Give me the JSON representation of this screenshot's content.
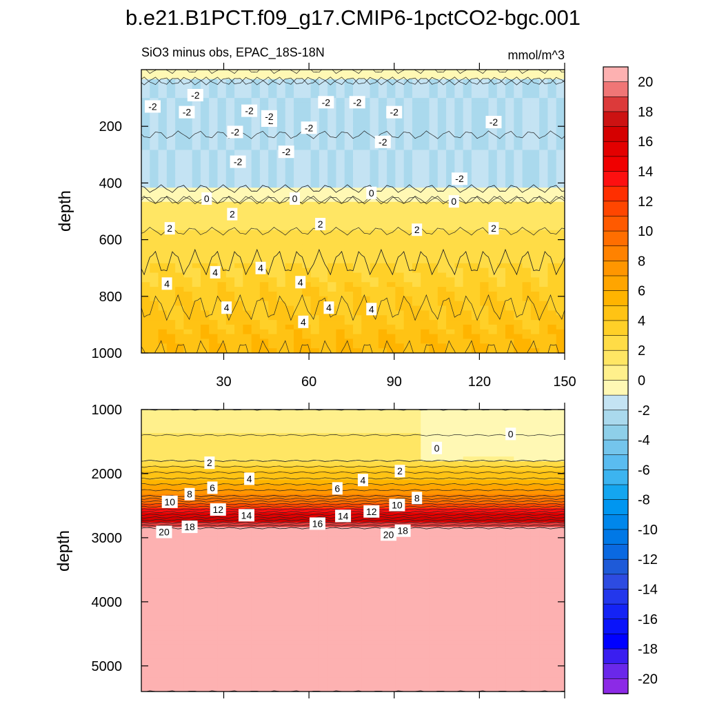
{
  "figure_title": "b.e21.B1PCT.f09_g17.CMIP6-1pctCO2-bgc.001",
  "chart_data": {
    "type": "contour",
    "title": "b.e21.B1PCT.f09_g17.CMIP6-1pctCO2-bgc.001",
    "subtitle_left": "SiO3 minus obs, EPAC_18S-18N",
    "subtitle_right": "mmol/m^3",
    "colorbar": {
      "levels": [
        -21,
        -20,
        -19,
        -18,
        -17,
        -16,
        -15,
        -14,
        -13,
        -12,
        -11,
        -10,
        -9,
        -8,
        -7,
        -6,
        -5,
        -4,
        -3,
        -2,
        -1,
        0,
        1,
        2,
        3,
        4,
        5,
        6,
        7,
        8,
        9,
        10,
        11,
        12,
        13,
        14,
        15,
        16,
        17,
        18,
        19,
        20,
        21
      ],
      "tick_labels": [
        "20",
        "18",
        "16",
        "14",
        "12",
        "10",
        "8",
        "6",
        "4",
        "2",
        "0",
        "-2",
        "-4",
        "-6",
        "-8",
        "-10",
        "-12",
        "-14",
        "-16",
        "-18",
        "-20"
      ],
      "colors_top_to_bottom": [
        "#fdb1b1",
        "#f07676",
        "#dc3a3a",
        "#cc1212",
        "#d50000",
        "#e30000",
        "#f00000",
        "#fd1010",
        "#ff2f00",
        "#ff4600",
        "#ff5a00",
        "#ff6e00",
        "#ff8200",
        "#ff9600",
        "#ffa500",
        "#ffb400",
        "#ffc314",
        "#ffd028",
        "#ffdc46",
        "#ffe664",
        "#fff08c",
        "#fff8b4",
        "#c4e3f3",
        "#aad9ed",
        "#8ecfe9",
        "#74c5ec",
        "#5abcf0",
        "#3cb4f0",
        "#14a6f0",
        "#0096f0",
        "#0087eb",
        "#0078e6",
        "#0a69e1",
        "#1e5ad8",
        "#2d4be1",
        "#2337ec",
        "#1423f5",
        "#0a14fa",
        "#0000ff",
        "#3a1ef0",
        "#6a28ea",
        "#8c2ae6"
      ]
    },
    "panels": [
      {
        "name": "upper-0-1000m",
        "x_axis": {
          "range": [
            1,
            150
          ],
          "ticks": [
            30,
            60,
            90,
            120,
            150
          ]
        },
        "y_axis": {
          "label": "depth",
          "range": [
            0,
            1000
          ],
          "ticks": [
            200,
            400,
            600,
            800,
            1000
          ],
          "inverted": true
        },
        "bands": [
          {
            "depth": [
              0,
              40
            ],
            "value_range": [
              -1,
              0
            ]
          },
          {
            "depth": [
              40,
              420
            ],
            "value_range": [
              -3,
              -1
            ]
          },
          {
            "depth": [
              420,
              460
            ],
            "value_range": [
              -1,
              0
            ]
          },
          {
            "depth": [
              460,
              680
            ],
            "value_range": [
              1,
              3
            ]
          },
          {
            "depth": [
              680,
              1000
            ],
            "value_range": [
              3,
              5
            ]
          }
        ],
        "contour_labels": [
          {
            "value": "-2",
            "x": 5,
            "depth": 130
          },
          {
            "value": "-2",
            "x": 20,
            "depth": 90
          },
          {
            "value": "-2",
            "x": 39,
            "depth": 145
          },
          {
            "value": "-2",
            "x": 34,
            "depth": 220
          },
          {
            "value": "-2",
            "x": 46,
            "depth": 180
          },
          {
            "value": "-2",
            "x": 66,
            "depth": 115
          },
          {
            "value": "-2",
            "x": 90,
            "depth": 150
          },
          {
            "value": "-2",
            "x": 46,
            "depth": 165
          },
          {
            "value": "-2",
            "x": 60,
            "depth": 205
          },
          {
            "value": "-2",
            "x": 77,
            "depth": 115
          },
          {
            "value": "-2",
            "x": 52,
            "depth": 290
          },
          {
            "value": "-2",
            "x": 86,
            "depth": 255
          },
          {
            "value": "-2",
            "x": 35,
            "depth": 325
          },
          {
            "value": "-2",
            "x": 125,
            "depth": 185
          },
          {
            "value": "-2",
            "x": 113,
            "depth": 385
          },
          {
            "value": "-2",
            "x": 17,
            "depth": 150
          },
          {
            "value": "0",
            "x": 24,
            "depth": 455
          },
          {
            "value": "0",
            "x": 55,
            "depth": 455
          },
          {
            "value": "0",
            "x": 82,
            "depth": 435
          },
          {
            "value": "0",
            "x": 111,
            "depth": 465
          },
          {
            "value": "2",
            "x": 33,
            "depth": 510
          },
          {
            "value": "2",
            "x": 11,
            "depth": 560
          },
          {
            "value": "2",
            "x": 64,
            "depth": 545
          },
          {
            "value": "2",
            "x": 98,
            "depth": 565
          },
          {
            "value": "2",
            "x": 125,
            "depth": 560
          },
          {
            "value": "4",
            "x": 10,
            "depth": 755
          },
          {
            "value": "4",
            "x": 27,
            "depth": 715
          },
          {
            "value": "4",
            "x": 43,
            "depth": 700
          },
          {
            "value": "4",
            "x": 57,
            "depth": 750
          },
          {
            "value": "4",
            "x": 31,
            "depth": 840
          },
          {
            "value": "4",
            "x": 67,
            "depth": 840
          },
          {
            "value": "4",
            "x": 82,
            "depth": 845
          },
          {
            "value": "4",
            "x": 58,
            "depth": 890
          }
        ]
      },
      {
        "name": "lower-1000-5000m",
        "x_axis": {
          "range": [
            1,
            150
          ],
          "ticks": [
            30,
            60,
            90,
            120,
            150
          ]
        },
        "y_axis": {
          "label": "depth",
          "range": [
            1000,
            5400
          ],
          "ticks": [
            1000,
            2000,
            3000,
            4000,
            5000
          ],
          "inverted": true
        },
        "bands": [
          {
            "depth": [
              1000,
              1800
            ],
            "value_range": [
              0,
              2
            ]
          },
          {
            "depth": [
              1800,
              2350
            ],
            "value_range": [
              2,
              8
            ]
          },
          {
            "depth": [
              2350,
              2850
            ],
            "value_range": [
              8,
              20
            ]
          },
          {
            "depth": [
              2850,
              5400
            ],
            "value_range": [
              20,
              21
            ]
          }
        ],
        "contour_labels": [
          {
            "value": "0",
            "x": 105,
            "depth": 1600
          },
          {
            "value": "0",
            "x": 131,
            "depth": 1380
          },
          {
            "value": "2",
            "x": 25,
            "depth": 1830
          },
          {
            "value": "2",
            "x": 92,
            "depth": 1960
          },
          {
            "value": "4",
            "x": 39,
            "depth": 2080
          },
          {
            "value": "4",
            "x": 79,
            "depth": 2100
          },
          {
            "value": "6",
            "x": 26,
            "depth": 2220
          },
          {
            "value": "6",
            "x": 70,
            "depth": 2230
          },
          {
            "value": "8",
            "x": 18,
            "depth": 2320
          },
          {
            "value": "8",
            "x": 98,
            "depth": 2380
          },
          {
            "value": "10",
            "x": 11,
            "depth": 2440
          },
          {
            "value": "10",
            "x": 91,
            "depth": 2490
          },
          {
            "value": "12",
            "x": 28,
            "depth": 2560
          },
          {
            "value": "12",
            "x": 82,
            "depth": 2590
          },
          {
            "value": "14",
            "x": 38,
            "depth": 2650
          },
          {
            "value": "14",
            "x": 72,
            "depth": 2660
          },
          {
            "value": "16",
            "x": 63,
            "depth": 2780
          },
          {
            "value": "18",
            "x": 18,
            "depth": 2830
          },
          {
            "value": "18",
            "x": 93,
            "depth": 2890
          },
          {
            "value": "20",
            "x": 9,
            "depth": 2910
          },
          {
            "value": "20",
            "x": 88,
            "depth": 2950
          }
        ]
      }
    ]
  }
}
